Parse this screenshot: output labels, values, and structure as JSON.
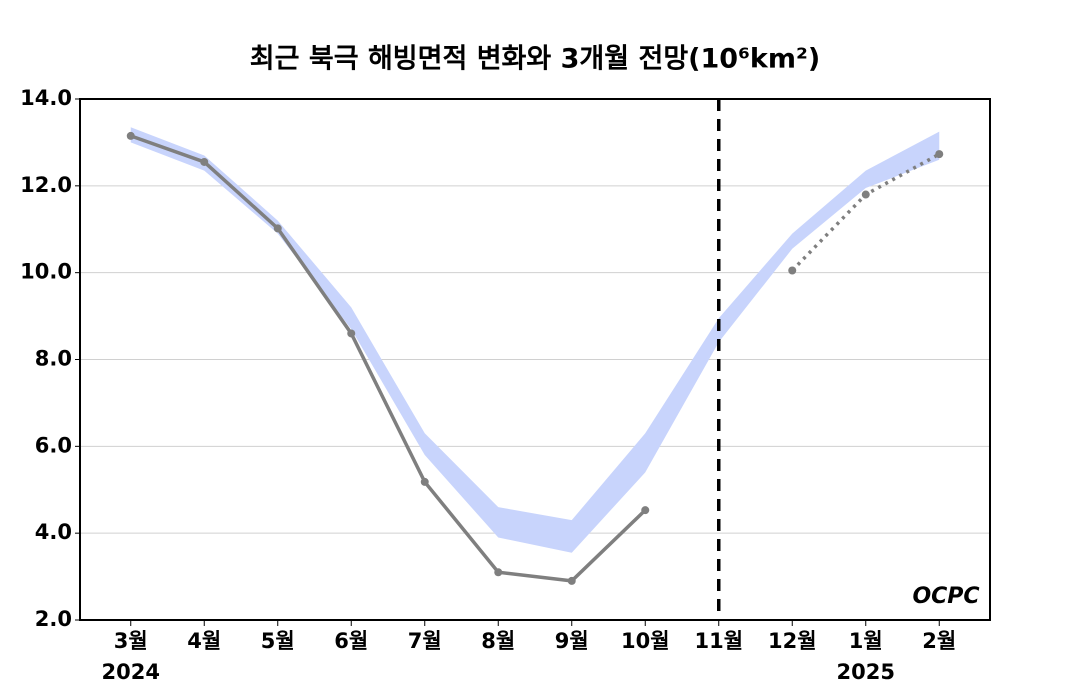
{
  "chart_data": {
    "type": "line",
    "title": "최근 북극 해빙면적 변화와 3개월 전망(10⁶km²)",
    "categories": [
      "3월",
      "4월",
      "5월",
      "6월",
      "7월",
      "8월",
      "9월",
      "10월",
      "11월",
      "12월",
      "1월",
      "2월"
    ],
    "year_labels": [
      {
        "category": "3월",
        "label": "2024"
      },
      {
        "category": "1월",
        "label": "2025"
      }
    ],
    "series": [
      {
        "color": "#7f7f7f",
        "style": "solid",
        "values": [
          13.15,
          12.55,
          11.02,
          8.6,
          5.18,
          3.1,
          2.9,
          4.53,
          null,
          null,
          null,
          null
        ]
      },
      {
        "color": "#7f7f7f",
        "style": "dotted",
        "values": [
          null,
          null,
          null,
          null,
          null,
          null,
          null,
          null,
          null,
          10.05,
          11.8,
          12.73
        ]
      }
    ],
    "band": {
      "color": "#c8d4fc",
      "upper": [
        13.35,
        12.7,
        11.2,
        9.2,
        6.3,
        4.6,
        4.3,
        6.3,
        8.95,
        10.9,
        12.35,
        13.25
      ],
      "lower": [
        13.0,
        12.35,
        10.9,
        8.7,
        5.8,
        3.9,
        3.55,
        5.4,
        8.4,
        10.55,
        11.95,
        12.6
      ]
    },
    "vline": {
      "category": "11월",
      "style": "dashed",
      "color": "#000000"
    },
    "ylim": [
      2.0,
      14.0
    ],
    "yticks": [
      {
        "value": 2.0,
        "label": "2.0"
      },
      {
        "value": 4.0,
        "label": "4.0"
      },
      {
        "value": 6.0,
        "label": "6.0"
      },
      {
        "value": 8.0,
        "label": "8.0"
      },
      {
        "value": 10.0,
        "label": "10.0"
      },
      {
        "value": 12.0,
        "label": "12.0"
      },
      {
        "value": 14.0,
        "label": "14.0"
      }
    ],
    "grid": true,
    "logo": "OCPC"
  }
}
